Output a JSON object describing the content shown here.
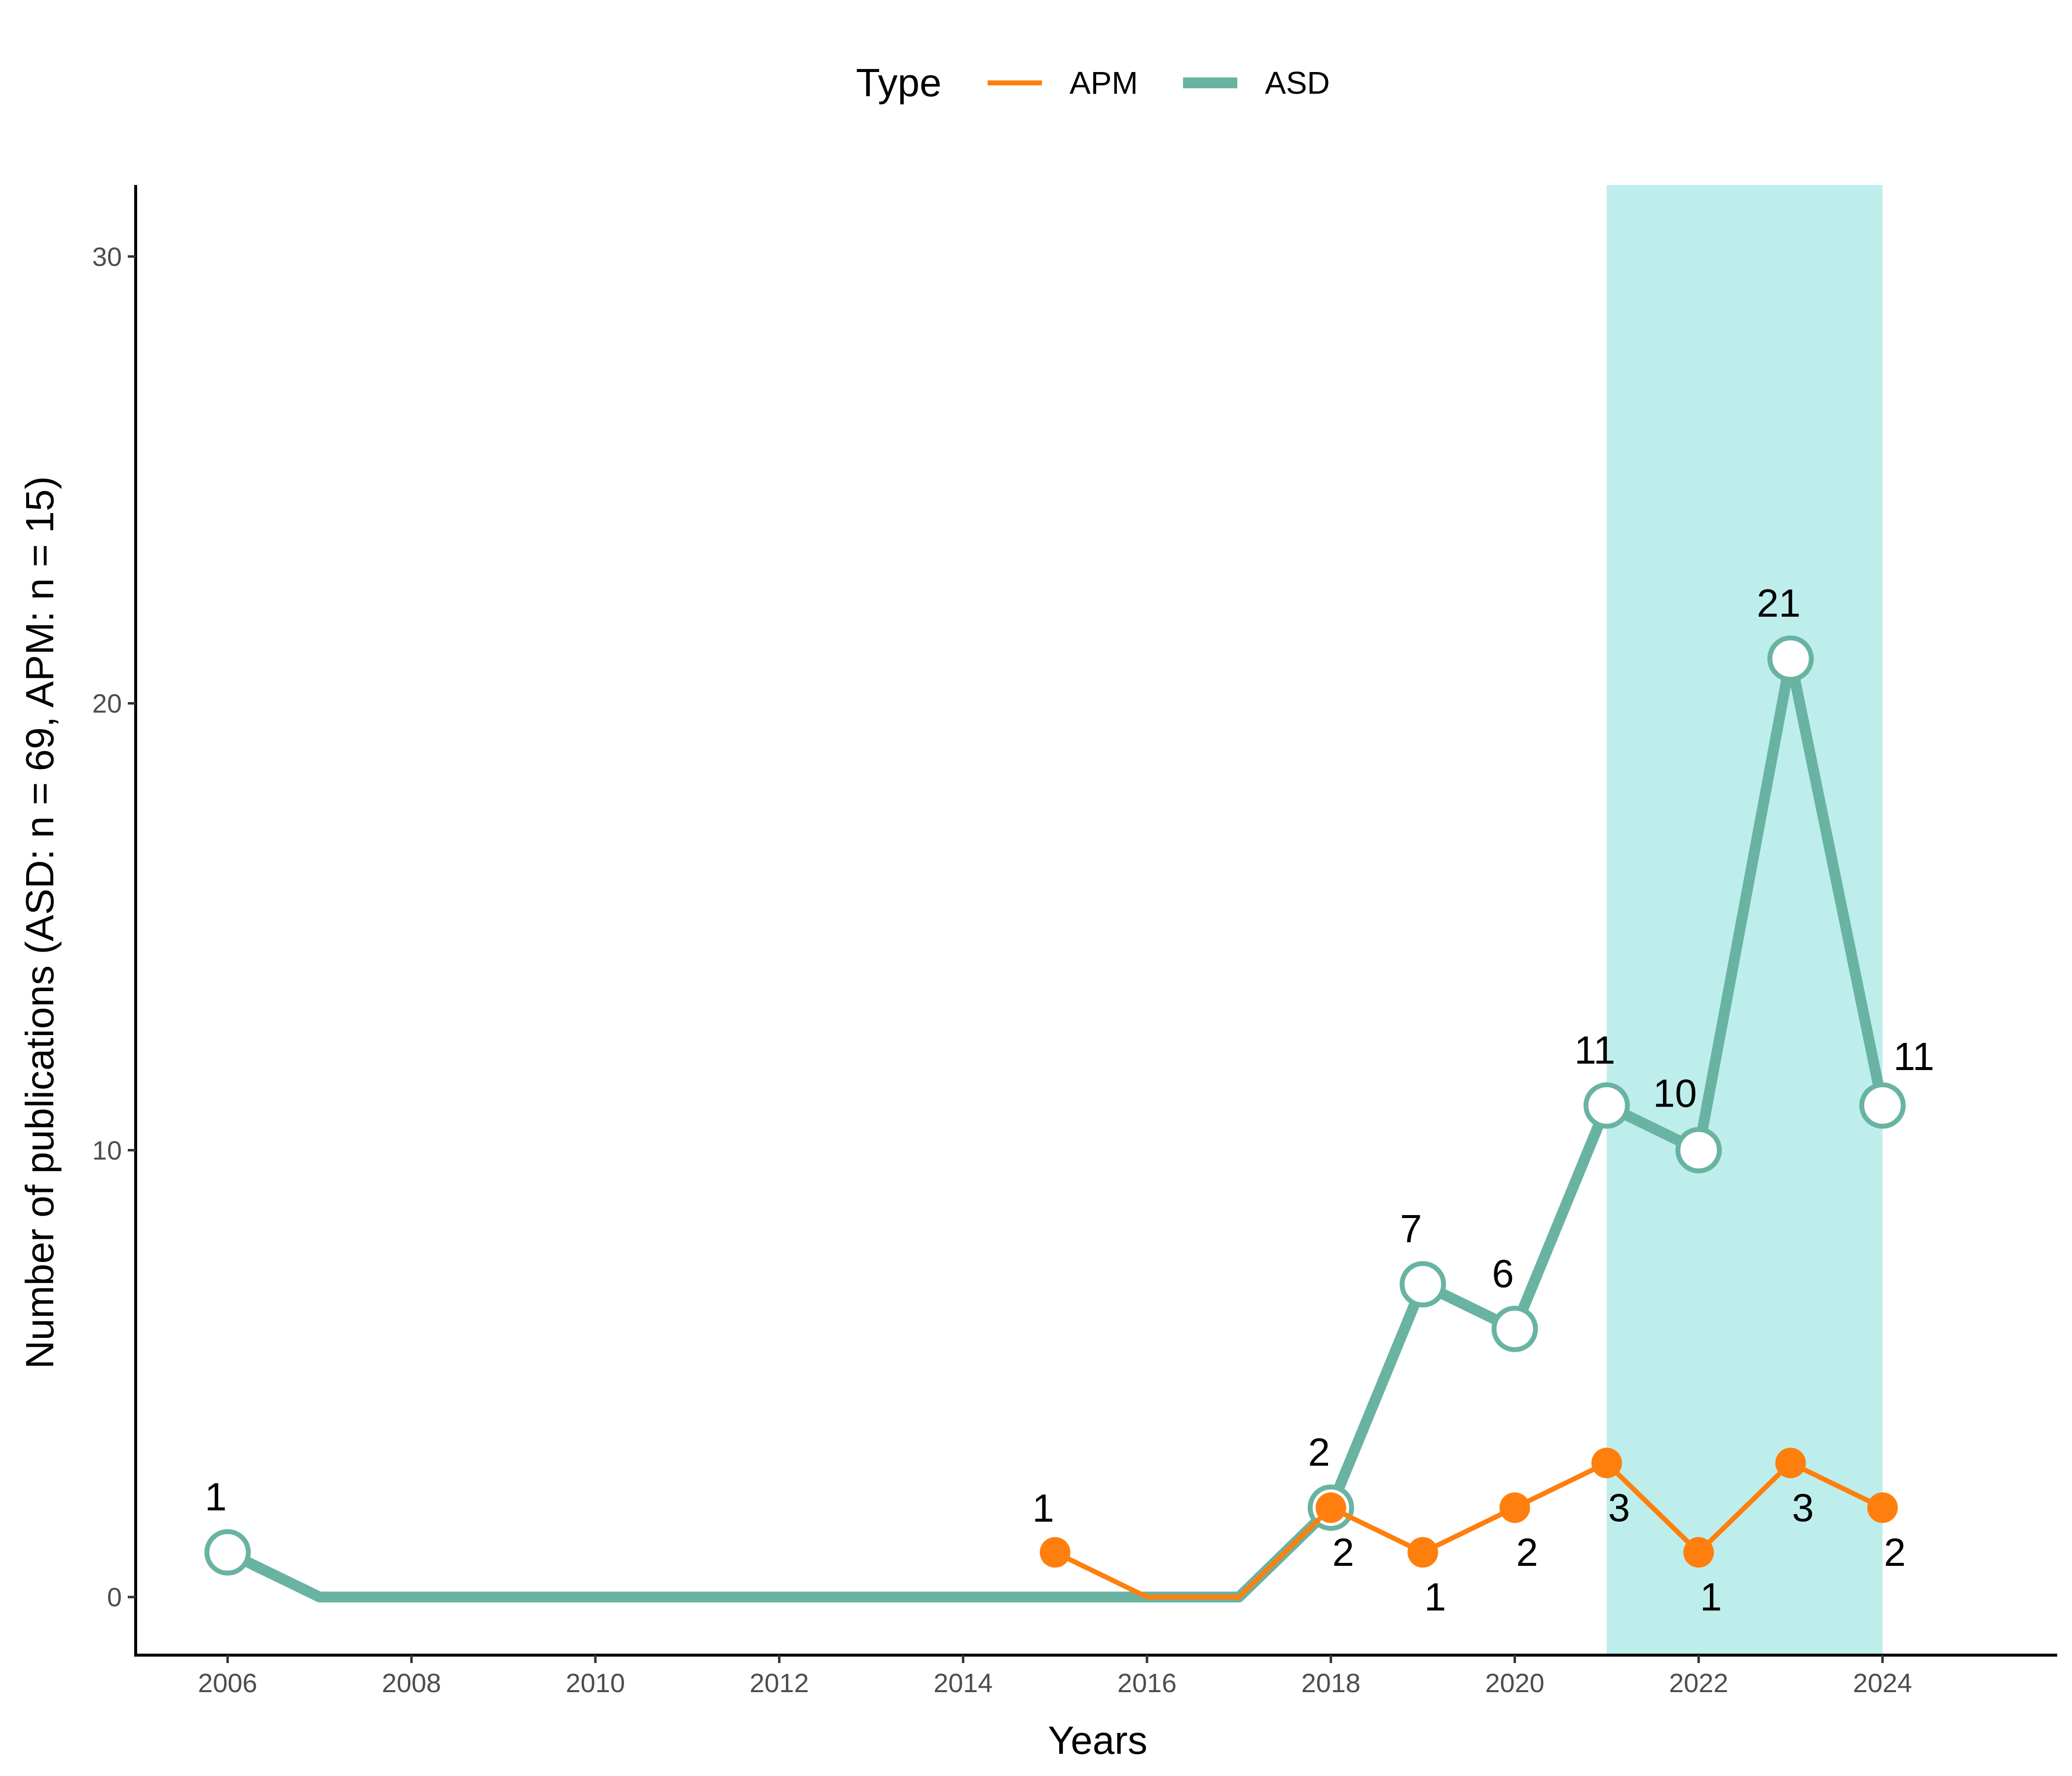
{
  "chart_data": {
    "type": "line",
    "xlabel": "Years",
    "ylabel": "Number of publications (ASD: n = 69, APM: n = 15)",
    "xlim": [
      2005,
      2025.9
    ],
    "ylim": [
      -1.3,
      31.6
    ],
    "x_ticks": [
      2006,
      2008,
      2010,
      2012,
      2014,
      2016,
      2018,
      2020,
      2022,
      2024
    ],
    "y_ticks": [
      0,
      10,
      20,
      30
    ],
    "grid": false,
    "highlight_band": {
      "from": 2021,
      "to": 2024,
      "color": "#bdeeeb"
    },
    "legend": {
      "title": "Type",
      "position": "top"
    },
    "series": [
      {
        "name": "APM",
        "color": "#ff7f0e",
        "x": [
          2015,
          2016,
          2017,
          2018,
          2019,
          2020,
          2021,
          2022,
          2023,
          2024
        ],
        "values": [
          1,
          0,
          0,
          2,
          1,
          2,
          3,
          1,
          3,
          2
        ],
        "points": [
          {
            "x": 2015,
            "y": 1,
            "label": "1"
          },
          {
            "x": 2018,
            "y": 2,
            "label": "2"
          },
          {
            "x": 2019,
            "y": 1,
            "label": "1"
          },
          {
            "x": 2020,
            "y": 2,
            "label": "2"
          },
          {
            "x": 2021,
            "y": 3,
            "label": "3"
          },
          {
            "x": 2022,
            "y": 1,
            "label": "1"
          },
          {
            "x": 2023,
            "y": 3,
            "label": "3"
          },
          {
            "x": 2024,
            "y": 2,
            "label": "2"
          }
        ]
      },
      {
        "name": "ASD",
        "color": "#69b3a2",
        "x": [
          2006,
          2007,
          2008,
          2009,
          2010,
          2011,
          2012,
          2013,
          2014,
          2015,
          2016,
          2017,
          2018,
          2019,
          2020,
          2021,
          2022,
          2023,
          2024
        ],
        "values": [
          1,
          0,
          0,
          0,
          0,
          0,
          0,
          0,
          0,
          0,
          0,
          0,
          2,
          7,
          6,
          11,
          10,
          21,
          11
        ],
        "points": [
          {
            "x": 2006,
            "y": 1,
            "label": "1"
          },
          {
            "x": 2018,
            "y": 2,
            "label": "2"
          },
          {
            "x": 2019,
            "y": 7,
            "label": "7"
          },
          {
            "x": 2020,
            "y": 6,
            "label": "6"
          },
          {
            "x": 2021,
            "y": 11,
            "label": "11"
          },
          {
            "x": 2022,
            "y": 10,
            "label": "10"
          },
          {
            "x": 2023,
            "y": 21,
            "label": "21"
          },
          {
            "x": 2024,
            "y": 11,
            "label": "11"
          }
        ]
      }
    ]
  }
}
